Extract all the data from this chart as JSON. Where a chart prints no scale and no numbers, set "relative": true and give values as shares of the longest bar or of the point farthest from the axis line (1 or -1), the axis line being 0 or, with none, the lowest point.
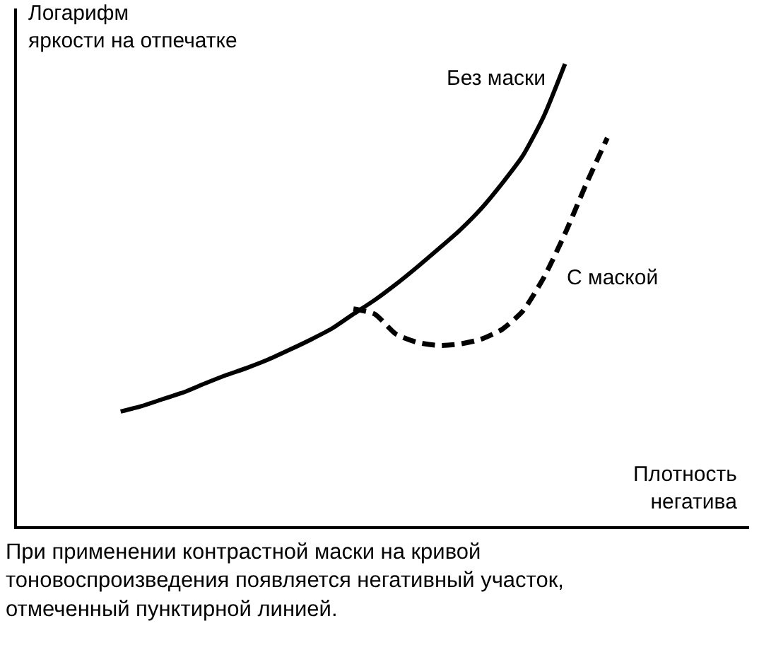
{
  "chart_data": {
    "type": "line",
    "relative": true,
    "ylabel": "Логарифм\nяркости на отпечатке",
    "xlabel": "Плотность\nнегатива",
    "categories": [
      null,
      null,
      null,
      null,
      null,
      null,
      null,
      null,
      null,
      null,
      null,
      null,
      null,
      null,
      null,
      null,
      null,
      null,
      null,
      null,
      null,
      null,
      null,
      null
    ],
    "series": [
      {
        "name": "Без маски",
        "color": "#000000",
        "line_style": "solid",
        "values": [
          0.248,
          0.26,
          0.275,
          0.29,
          0.309,
          0.327,
          0.343,
          0.361,
          0.382,
          0.404,
          0.428,
          0.459,
          0.489,
          0.523,
          0.56,
          0.599,
          0.639,
          0.685,
          0.74,
          0.801,
          0.887,
          1.0,
          null,
          null
        ]
      },
      {
        "name": "С маской",
        "color": "#000000",
        "line_style": "dashed",
        "values": [
          null,
          null,
          null,
          null,
          null,
          null,
          null,
          null,
          null,
          null,
          null,
          0.47,
          0.459,
          0.416,
          0.398,
          0.391,
          0.394,
          0.404,
          0.425,
          0.465,
          0.538,
          0.633,
          0.74,
          0.84
        ]
      }
    ],
    "annotations": [
      "При применении контрастной маски на кривой\nтоновоспроизведения появляется негативный участок,\nотмеченный пунктирной линией."
    ],
    "legend": false,
    "marker": "none"
  }
}
